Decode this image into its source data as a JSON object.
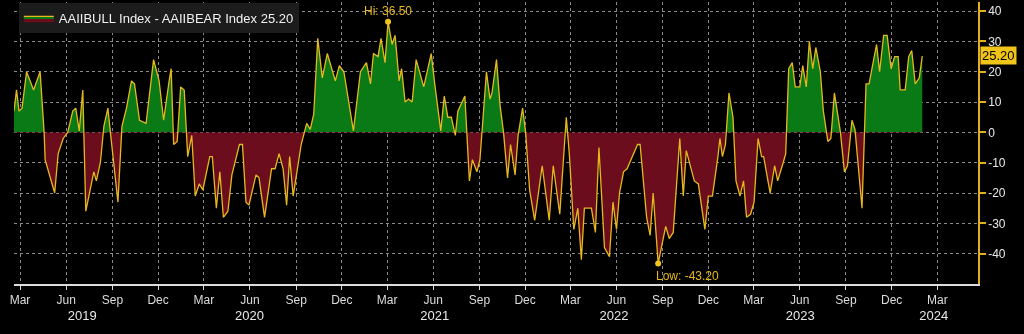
{
  "chart_data": {
    "type": "area",
    "x": [
      "2019-02-17",
      "2019-02-22",
      "2019-02-27",
      "2019-03-05",
      "2019-03-14",
      "2019-03-28",
      "2019-04-10",
      "2019-04-18",
      "2019-04-20",
      "2019-05-09",
      "2019-05-16",
      "2019-05-26",
      "2019-06-04",
      "2019-06-14",
      "2019-06-20",
      "2019-06-27",
      "2019-07-04",
      "2019-07-10",
      "2019-07-26",
      "2019-07-31",
      "2019-08-08",
      "2019-08-15",
      "2019-08-23",
      "2019-08-28",
      "2019-09-12",
      "2019-09-20",
      "2019-09-29",
      "2019-10-09",
      "2019-10-15",
      "2019-10-25",
      "2019-11-07",
      "2019-11-22",
      "2019-12-03",
      "2019-12-12",
      "2019-12-23",
      "2019-12-27",
      "2020-01-01",
      "2020-01-08",
      "2020-01-15",
      "2020-01-22",
      "2020-01-29",
      "2020-02-06",
      "2020-02-13",
      "2020-02-21",
      "2020-02-28",
      "2020-03-13",
      "2020-03-18",
      "2020-03-26",
      "2020-04-02",
      "2020-04-09",
      "2020-04-18",
      "2020-04-26",
      "2020-05-11",
      "2020-05-17",
      "2020-05-24",
      "2020-05-30",
      "2020-06-13",
      "2020-06-19",
      "2020-06-30",
      "2020-07-14",
      "2020-07-21",
      "2020-07-29",
      "2020-08-06",
      "2020-08-13",
      "2020-08-19",
      "2020-08-26",
      "2020-09-11",
      "2020-09-22",
      "2020-09-29",
      "2020-10-06",
      "2020-10-14",
      "2020-10-23",
      "2020-11-02",
      "2020-11-18",
      "2020-11-26",
      "2020-12-05",
      "2020-12-24",
      "2021-01-07",
      "2021-01-19",
      "2021-01-27",
      "2021-02-02",
      "2021-02-11",
      "2021-02-17",
      "2021-02-25",
      "2021-03-03",
      "2021-03-11",
      "2021-03-17",
      "2021-03-25",
      "2021-03-30",
      "2021-04-06",
      "2021-04-13",
      "2021-04-20",
      "2021-04-28",
      "2021-05-13",
      "2021-05-28",
      "2021-06-04",
      "2021-06-16",
      "2021-06-23",
      "2021-06-30",
      "2021-07-07",
      "2021-07-15",
      "2021-07-20",
      "2021-08-03",
      "2021-08-12",
      "2021-08-18",
      "2021-08-27",
      "2021-09-02",
      "2021-09-15",
      "2021-09-22",
      "2021-09-26",
      "2021-10-05",
      "2021-10-12",
      "2021-10-19",
      "2021-10-27",
      "2021-11-02",
      "2021-11-11",
      "2021-11-17",
      "2021-11-26",
      "2021-12-02",
      "2021-12-10",
      "2021-12-20",
      "2022-01-04",
      "2022-01-18",
      "2022-01-26",
      "2022-02-08",
      "2022-02-21",
      "2022-02-27",
      "2022-03-08",
      "2022-03-16",
      "2022-03-23",
      "2022-03-29",
      "2022-04-12",
      "2022-04-20",
      "2022-04-27",
      "2022-05-08",
      "2022-05-18",
      "2022-05-25",
      "2022-06-01",
      "2022-06-07",
      "2022-06-15",
      "2022-06-22",
      "2022-07-13",
      "2022-07-18",
      "2022-07-31",
      "2022-08-07",
      "2022-08-13",
      "2022-08-23",
      "2022-09-07",
      "2022-09-14",
      "2022-09-22",
      "2022-10-05",
      "2022-10-12",
      "2022-10-18",
      "2022-11-03",
      "2022-11-11",
      "2022-11-24",
      "2022-12-01",
      "2022-12-09",
      "2022-12-20",
      "2022-12-24",
      "2022-12-29",
      "2023-01-04",
      "2023-01-11",
      "2023-01-19",
      "2023-01-25",
      "2023-02-02",
      "2023-02-09",
      "2023-02-15",
      "2023-02-23",
      "2023-03-02",
      "2023-03-10",
      "2023-03-17",
      "2023-03-21",
      "2023-04-03",
      "2023-04-12",
      "2023-04-18",
      "2023-04-29",
      "2023-05-04",
      "2023-05-10",
      "2023-05-17",
      "2023-05-23",
      "2023-06-01",
      "2023-06-07",
      "2023-06-14",
      "2023-06-20",
      "2023-06-27",
      "2023-07-03",
      "2023-07-12",
      "2023-07-18",
      "2023-07-27",
      "2023-08-02",
      "2023-08-09",
      "2023-08-21",
      "2023-08-29",
      "2023-09-04",
      "2023-09-13",
      "2023-09-19",
      "2023-10-03",
      "2023-10-11",
      "2023-10-17",
      "2023-11-01",
      "2023-11-07",
      "2023-11-15",
      "2023-11-22",
      "2023-11-30",
      "2023-12-07",
      "2023-12-14",
      "2023-12-18",
      "2023-12-28",
      "2024-01-04",
      "2024-01-10",
      "2024-01-17",
      "2024-01-25",
      "2024-01-31"
    ],
    "series": [
      {
        "name": "AAIIBULL Index - AAIIBEAR Index 25.20",
        "color": "#e6b81e",
        "values": [
          7,
          14,
          7,
          8,
          20,
          14,
          20,
          0,
          -9,
          -20,
          -7,
          -2,
          0,
          7,
          8,
          0.5,
          14,
          -26,
          -13,
          -16,
          -10,
          2,
          8,
          0,
          -23,
          2,
          8,
          17,
          16,
          4,
          3,
          24,
          17,
          4,
          17,
          21,
          -4,
          -3,
          15,
          14,
          -8,
          -1,
          -21,
          -17,
          -19,
          -8,
          -8,
          -25,
          -13,
          -28,
          -26,
          -14,
          -4,
          -4,
          -23,
          -24,
          -14,
          -15,
          -28,
          -12,
          -12,
          -7,
          -12,
          -24,
          -8,
          -21,
          -4,
          3,
          1,
          6,
          31,
          18,
          26,
          17,
          22,
          20,
          0.5,
          20,
          23,
          16,
          26,
          25,
          31,
          23,
          36.5,
          29,
          32,
          17,
          21,
          10,
          11,
          10,
          24,
          15,
          26,
          16,
          0.5,
          12,
          5,
          5,
          -1,
          7,
          12,
          -16,
          -9,
          -13,
          -9,
          20,
          11,
          13,
          24,
          9,
          0,
          -15,
          -4,
          -14,
          -1,
          8,
          0,
          -19,
          -29,
          -11,
          -29,
          -11,
          -27,
          5,
          -7,
          -32,
          -25,
          -42,
          -25,
          -25,
          -33,
          -5,
          -38,
          -41,
          -23,
          -32,
          -20,
          -13,
          -12,
          -4,
          -4,
          -28,
          -34,
          -20,
          -43.2,
          -31,
          -35,
          -33,
          -2,
          -21,
          -6,
          -16,
          -17,
          -32,
          -21,
          -21,
          -8,
          -2,
          -8,
          -4,
          13,
          5,
          -16,
          -21,
          -16,
          -28,
          -27,
          -23,
          -2,
          -8,
          -8,
          -20,
          -11,
          -16,
          -10,
          -7,
          21,
          23,
          15,
          15,
          22,
          15,
          30,
          21,
          28,
          20,
          7,
          -3,
          -2,
          13,
          0,
          -13,
          -11,
          4,
          1,
          -25,
          16,
          16,
          29,
          20,
          32,
          32,
          21,
          25,
          25,
          14,
          14,
          25,
          27,
          16,
          18,
          25.2
        ]
      }
    ],
    "ylim": [
      -50,
      43
    ],
    "yticks": [
      -40,
      -30,
      -20,
      -10,
      0,
      10,
      20,
      30,
      40
    ],
    "xlim": [
      "2019-02-17",
      "2024-05-21"
    ],
    "xticks": [
      {
        "value": "2019-03-01",
        "label": "Mar"
      },
      {
        "value": "2019-06-01",
        "label": "Jun"
      },
      {
        "value": "2019-09-01",
        "label": "Sep"
      },
      {
        "value": "2019-12-01",
        "label": "Dec"
      },
      {
        "value": "2020-03-01",
        "label": "Mar"
      },
      {
        "value": "2020-06-01",
        "label": "Jun"
      },
      {
        "value": "2020-09-01",
        "label": "Sep"
      },
      {
        "value": "2020-12-01",
        "label": "Dec"
      },
      {
        "value": "2021-03-01",
        "label": "Mar"
      },
      {
        "value": "2021-06-01",
        "label": "Jun"
      },
      {
        "value": "2021-09-01",
        "label": "Sep"
      },
      {
        "value": "2021-12-01",
        "label": "Dec"
      },
      {
        "value": "2022-03-01",
        "label": "Mar"
      },
      {
        "value": "2022-06-01",
        "label": "Jun"
      },
      {
        "value": "2022-09-01",
        "label": "Sep"
      },
      {
        "value": "2022-12-01",
        "label": "Dec"
      },
      {
        "value": "2023-03-01",
        "label": "Mar"
      },
      {
        "value": "2023-06-01",
        "label": "Jun"
      },
      {
        "value": "2023-09-01",
        "label": "Sep"
      },
      {
        "value": "2023-12-01",
        "label": "Dec"
      },
      {
        "value": "2024-03-01",
        "label": "Mar"
      }
    ],
    "x2lim": [
      "2019-02-17",
      "2024-05-21"
    ],
    "x2ticks": [
      {
        "value": "2019-07-03",
        "label": "2019"
      },
      {
        "value": "2020-05-31",
        "label": "2020"
      },
      {
        "value": "2021-06-04",
        "label": "2021"
      },
      {
        "value": "2022-05-27",
        "label": "2022"
      },
      {
        "value": "2023-06-02",
        "label": "2023"
      },
      {
        "value": "2024-02-23",
        "label": "2024"
      }
    ],
    "annotations": [
      {
        "text": "Hi: 36.50",
        "x": "2021-03-03",
        "y": 36.5
      },
      {
        "text": "Low: -43.20",
        "x": "2022-08-23",
        "y": -43.2
      },
      {
        "text": "25.20",
        "y": 25.2
      }
    ],
    "grid": true,
    "legend": "top left"
  }
}
